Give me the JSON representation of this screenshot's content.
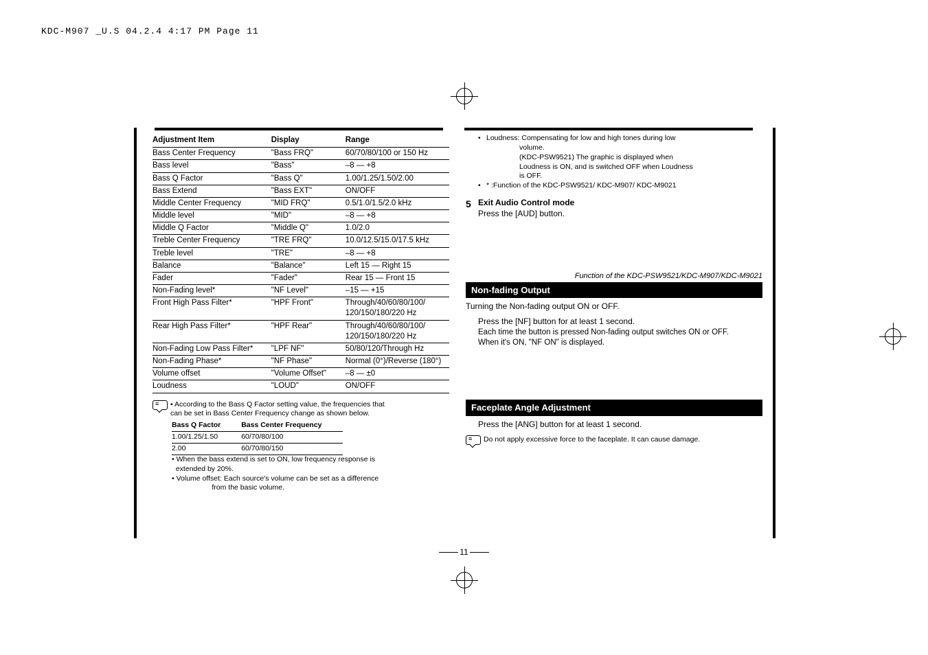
{
  "header": "KDC-M907 _U.S  04.2.4  4:17 PM  Page 11",
  "table": {
    "headers": [
      "Adjustment Item",
      "Display",
      "Range"
    ],
    "rows": [
      [
        "Bass Center Frequency",
        "\"Bass FRQ\"",
        "60/70/80/100 or 150 Hz"
      ],
      [
        "Bass level",
        "\"Bass\"",
        "–8 — +8"
      ],
      [
        "Bass Q Factor",
        "\"Bass Q\"",
        "1.00/1.25/1.50/2.00"
      ],
      [
        "Bass Extend",
        "\"Bass EXT\"",
        "ON/OFF"
      ],
      [
        "Middle Center Frequency",
        "\"MID FRQ\"",
        "0.5/1.0/1.5/2.0 kHz"
      ],
      [
        "Middle level",
        "\"MID\"",
        "–8 — +8"
      ],
      [
        "Middle Q Factor",
        "\"Middle Q\"",
        "1.0/2.0"
      ],
      [
        "Treble Center Frequency",
        "\"TRE FRQ\"",
        "10.0/12.5/15.0/17.5 kHz"
      ],
      [
        "Treble level",
        "\"TRE\"",
        "–8 — +8"
      ],
      [
        "Balance",
        "\"Balance\"",
        "Left 15 — Right 15"
      ],
      [
        "Fader",
        "\"Fader\"",
        "Rear 15 — Front 15"
      ],
      [
        "Non-Fading level*",
        "\"NF Level\"",
        "–15 — +15"
      ],
      [
        "Front High Pass Filter*",
        "\"HPF Front\"",
        "Through/40/60/80/100/ 120/150/180/220 Hz"
      ],
      [
        "Rear High Pass Filter*",
        "\"HPF Rear\"",
        "Through/40/60/80/100/ 120/150/180/220 Hz"
      ],
      [
        "Non-Fading Low Pass Filter*",
        "\"LPF NF\"",
        "50/80/120/Through Hz"
      ],
      [
        "Non-Fading Phase*",
        "\"NF Phase\"",
        "Normal (0°)/Reverse (180°)"
      ],
      [
        "Volume offset",
        "\"Volume Offset\"",
        "–8 — ±0"
      ],
      [
        "Loudness",
        "\"LOUD\"",
        "ON/OFF"
      ]
    ]
  },
  "qnote": {
    "intro1": "According to the Bass Q Factor setting value, the frequencies that",
    "intro2": "can be set in Bass Center Frequency change as shown below.",
    "headers": [
      "Bass Q Factor",
      "Bass Center Frequency"
    ],
    "rows": [
      [
        "1.00/1.25/1.50",
        "60/70/80/100"
      ],
      [
        "2.00",
        "60/70/80/150"
      ]
    ],
    "b1a": "When the bass extend is set to ON, low frequency response is",
    "b1b": "extended by 20%.",
    "b2a": "Volume offset: Each source's volume can be set as a difference",
    "b2b": "from the basic volume."
  },
  "right": {
    "loud1": "Loudness: Compensating for low and high tones during low",
    "loud2": "volume.",
    "loud3": "(KDC-PSW9521) The graphic is displayed when",
    "loud4": "Loudness is ON, and is switched OFF when Loudness",
    "loud5": "is OFF.",
    "star": "* :Function of the KDC-PSW9521/ KDC-M907/ KDC-M9021",
    "step5title": "Exit Audio Control mode",
    "step5body": "Press the [AUD] button.",
    "nonfading": {
      "caption": "Function of the KDC-PSW9521/KDC-M907/KDC-M9021",
      "heading": "Non-fading Output",
      "l1": "Turning the Non-fading output ON or OFF.",
      "l2": "Press the [NF] button for at least 1 second.",
      "l3": "Each time the button is pressed Non-fading output switches ON or OFF.",
      "l4": "When it's ON, \"NF ON\" is displayed."
    },
    "faceplate": {
      "heading": "Faceplate Angle Adjustment",
      "l1": "Press the [ANG] button for at least 1 second.",
      "note": "Do not apply excessive force to the faceplate. It can cause damage."
    }
  },
  "pagenum": "11"
}
